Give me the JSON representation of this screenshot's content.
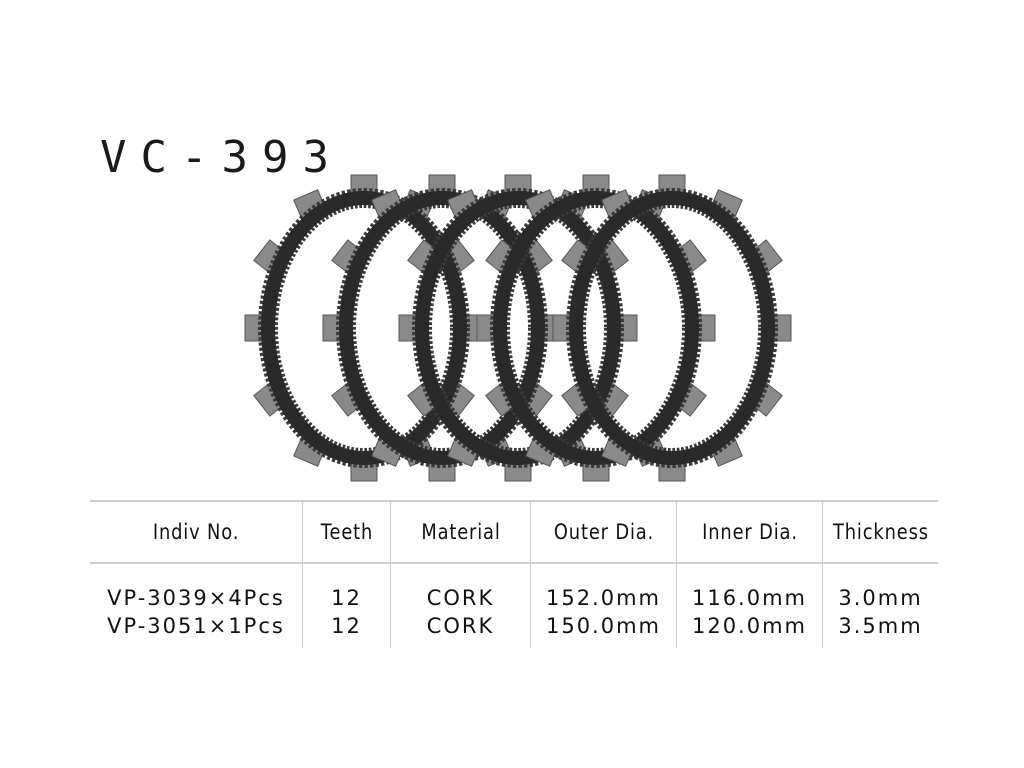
{
  "title": "VC-393",
  "image": {
    "subject": "clutch-friction-plates",
    "plate_count": 5,
    "teeth_per_plate": 12,
    "colors": {
      "plate": "#3a3a3a",
      "tooth": "#8a8a8a"
    }
  },
  "table": {
    "headers": [
      "Indiv No.",
      "Teeth",
      "Material",
      "Outer Dia.",
      "Inner Dia.",
      "Thickness"
    ],
    "rows": [
      [
        "VP-3039×4Pcs",
        "12",
        "CORK",
        "152.0mm",
        "116.0mm",
        "3.0mm"
      ],
      [
        "VP-3051×1Pcs",
        "12",
        "CORK",
        "150.0mm",
        "120.0mm",
        "3.5mm"
      ]
    ]
  }
}
